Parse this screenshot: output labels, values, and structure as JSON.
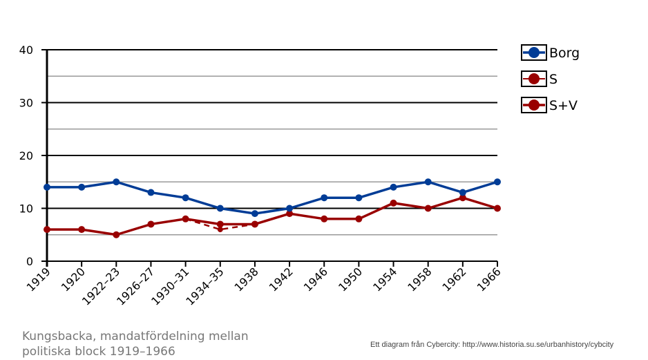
{
  "chart_data": {
    "type": "line",
    "title": "Kungsbacka, mandatfördelning mellan politiska block 1919–1966",
    "xlabel": "",
    "ylabel": "",
    "categories": [
      "1919",
      "1920",
      "1922–23",
      "1926–27",
      "1930–31",
      "1934–35",
      "1938",
      "1942",
      "1946",
      "1950",
      "1954",
      "1958",
      "1962",
      "1966"
    ],
    "ylim": [
      0,
      40
    ],
    "yticks": [
      0,
      10,
      20,
      30,
      40
    ],
    "grid": true,
    "legend_position": "right",
    "series": [
      {
        "name": "Borg",
        "color": "#003c96",
        "style": "solid",
        "values": [
          14,
          14,
          15,
          13,
          12,
          10,
          9,
          10,
          12,
          12,
          14,
          15,
          13,
          15
        ]
      },
      {
        "name": "S",
        "color": "#990000",
        "style": "dashed",
        "values": [
          null,
          null,
          null,
          null,
          8,
          6,
          7,
          null,
          null,
          null,
          null,
          null,
          null,
          null
        ]
      },
      {
        "name": "S+V",
        "color": "#990000",
        "style": "solid",
        "values": [
          6,
          6,
          5,
          7,
          8,
          7,
          7,
          9,
          8,
          8,
          11,
          10,
          12,
          10
        ]
      }
    ]
  },
  "caption_line1": "Kungsbacka, mandatfördelning mellan",
  "caption_line2": "politiska block 1919–1966",
  "credit": "Ett diagram från Cybercity: http://www.historia.su.se/urbanhistory/cybcity"
}
